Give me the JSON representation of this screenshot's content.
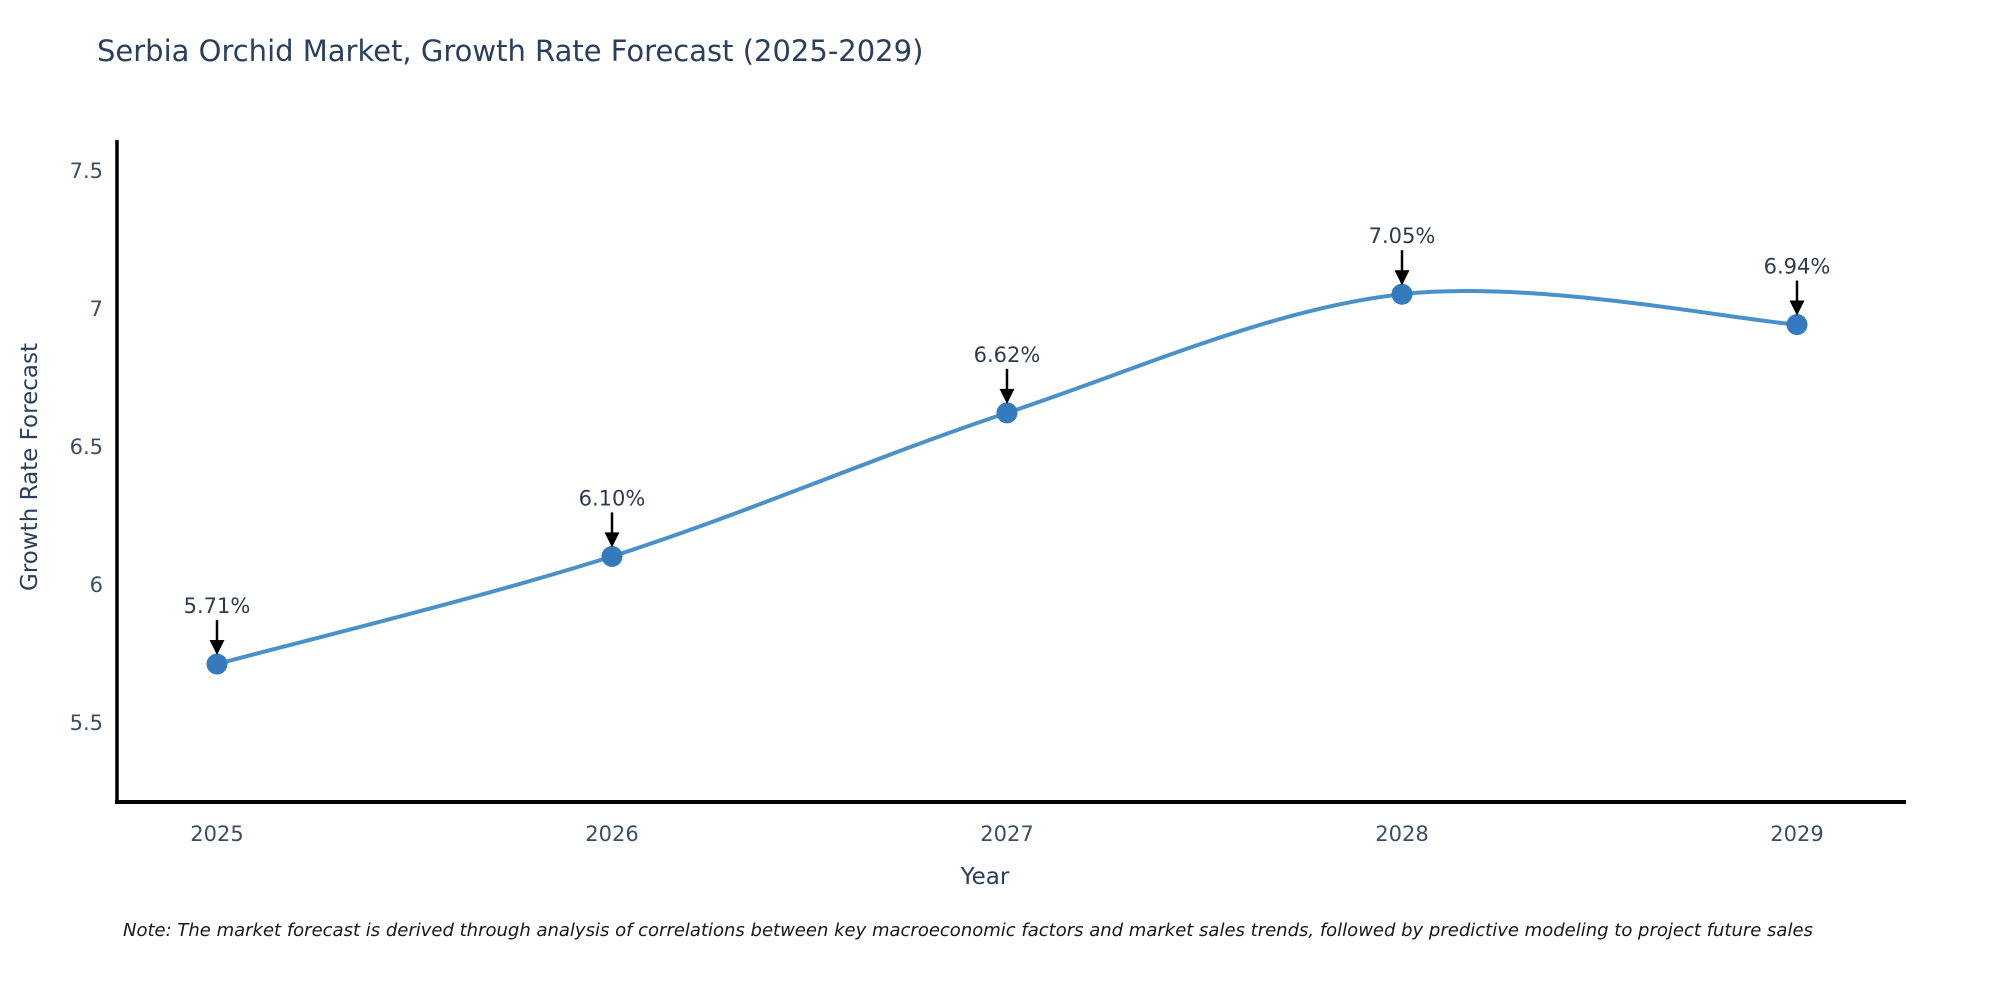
{
  "figure": {
    "note": "Note: The market forecast is derived through analysis of correlations between key macroeconomic factors and market sales trends, followed by predictive modeling to project future sales"
  },
  "chart_data": {
    "type": "line",
    "title": "Serbia Orchid Market, Growth Rate Forecast (2025-2029)",
    "xlabel": "Year",
    "ylabel": "Growth Rate Forecast",
    "x": [
      2025,
      2026,
      2027,
      2028,
      2029
    ],
    "values": [
      5.71,
      6.1,
      6.62,
      7.05,
      6.94
    ],
    "point_labels": [
      "5.71%",
      "6.10%",
      "6.62%",
      "7.05%",
      "6.94%"
    ],
    "x_tick_labels": [
      "2025",
      "2026",
      "2027",
      "2028",
      "2029"
    ],
    "y_ticks": [
      5.5,
      6.0,
      6.5,
      7.0,
      7.5
    ],
    "y_tick_labels": [
      "5.5",
      "6",
      "6.5",
      "7",
      "7.5"
    ],
    "xlim": [
      2024.75,
      2029.27
    ],
    "ylim": [
      5.21,
      7.63
    ],
    "line_shape": "spline",
    "grid": false,
    "legend": "none",
    "colors": {
      "line": "#4a90c9",
      "marker": "#3579be",
      "axis_line": "#000000",
      "title_text": "#2a3f5f",
      "tick_text": "#3d4e63",
      "annotation_text": "#2e3b4e",
      "annotation_arrow": "#000000",
      "background": "#ffffff"
    }
  }
}
